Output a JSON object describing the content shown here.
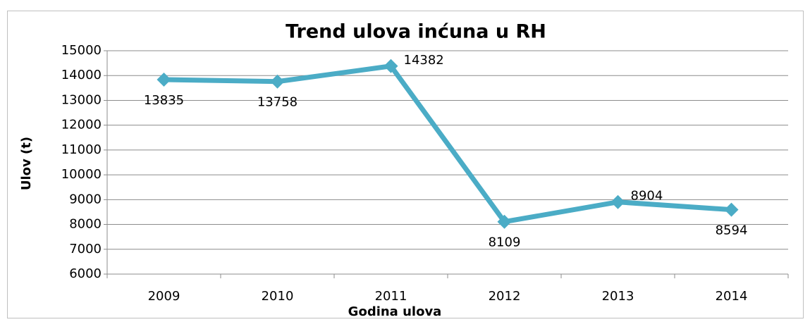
{
  "chart_data": {
    "type": "line",
    "title": "Trend ulova inćuna u RH",
    "x_label": "Godina ulova",
    "y_label": "Ulov (t)",
    "categories": [
      "2009",
      "2010",
      "2011",
      "2012",
      "2013",
      "2014"
    ],
    "series": [
      {
        "name": "Ulov",
        "color": "#4bacc6",
        "values": [
          13835,
          13758,
          14382,
          8109,
          8904,
          8594
        ]
      }
    ],
    "ylim": [
      6000,
      15000
    ],
    "yticks": [
      6000,
      7000,
      8000,
      9000,
      10000,
      11000,
      12000,
      13000,
      14000,
      15000
    ],
    "grid": true
  }
}
